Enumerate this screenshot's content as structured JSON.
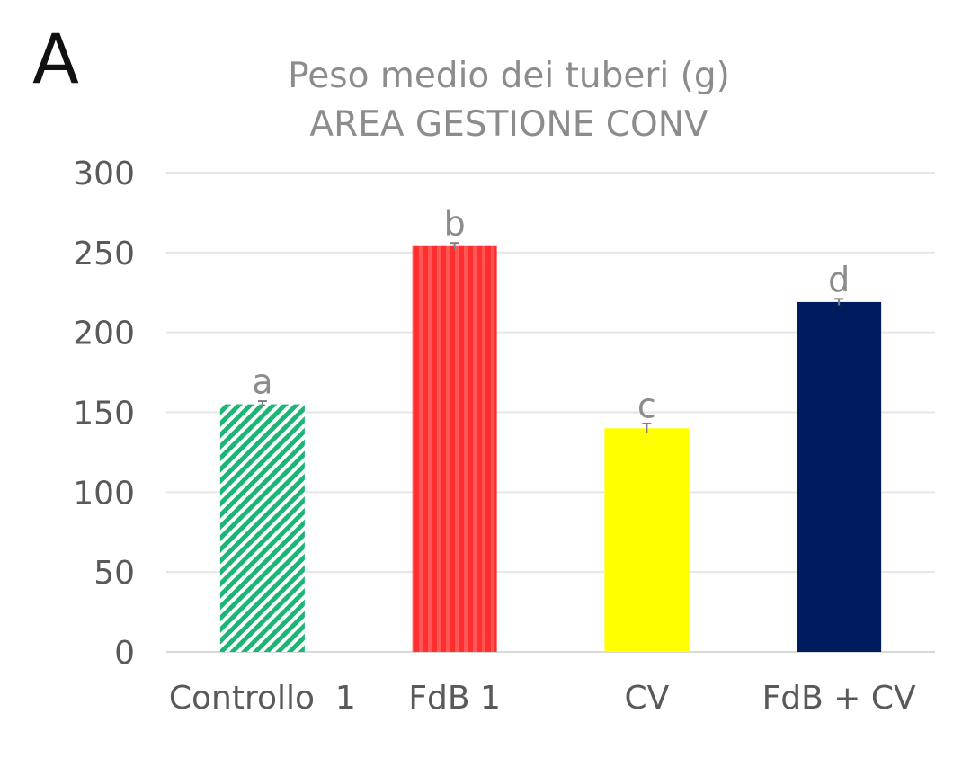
{
  "panel_label": "A",
  "chart_data": {
    "type": "bar",
    "title": "Peso medio dei tuberi (g)",
    "subtitle": "AREA GESTIONE CONV",
    "xlabel": "",
    "ylabel": "",
    "ylim": [
      0,
      300
    ],
    "yticks": [
      0,
      50,
      100,
      150,
      200,
      250,
      300
    ],
    "grid": true,
    "legend": "none",
    "categories": [
      "Controllo  1",
      "FdB 1",
      "CV",
      "FdB + CV"
    ],
    "values": [
      155,
      254,
      140,
      219
    ],
    "errors": [
      2,
      2,
      3,
      2
    ],
    "significance_labels": [
      "a",
      "b",
      "c",
      "d"
    ],
    "colors": [
      "#1bb574",
      "#ff2f2f",
      "#ffff00",
      "#001c5f"
    ],
    "fills": [
      "diagonal-hatch",
      "vertical-stripes",
      "solid",
      "solid"
    ]
  }
}
